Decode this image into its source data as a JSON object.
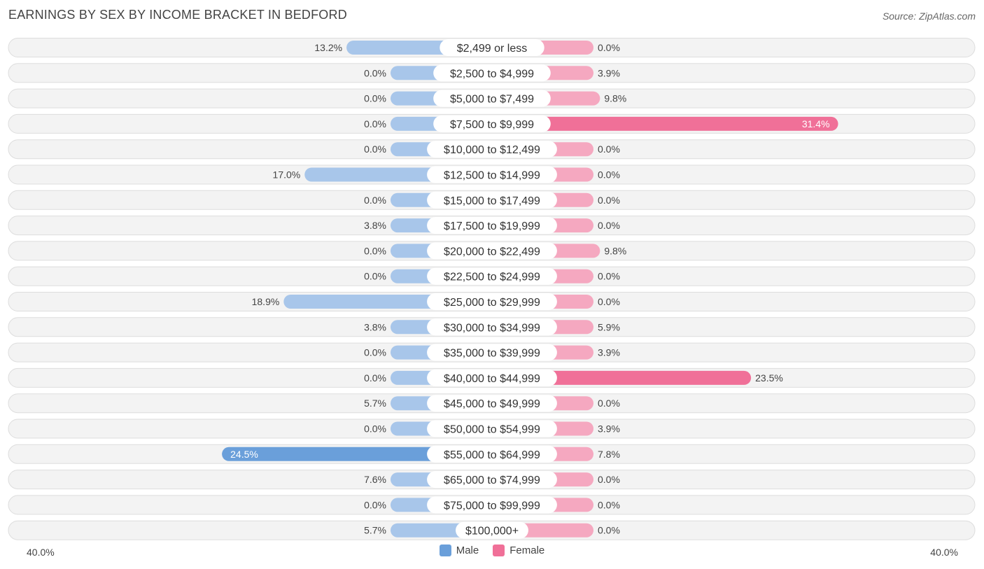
{
  "title": "EARNINGS BY SEX BY INCOME BRACKET IN BEDFORD",
  "source": "Source: ZipAtlas.com",
  "colors": {
    "male_light": "#a8c6ea",
    "male_dark": "#6a9fda",
    "female_light": "#f5a8c0",
    "female_dark": "#f07098",
    "row_bg": "#f3f3f3",
    "row_border": "#dddddd"
  },
  "legend": {
    "male_label": "Male",
    "female_label": "Female"
  },
  "axis": {
    "left_label": "40.0%",
    "right_label": "40.0%"
  },
  "chart_data": {
    "type": "bar",
    "orientation": "horizontal-diverging",
    "title": "EARNINGS BY SEX BY INCOME BRACKET IN BEDFORD",
    "xlim": [
      -40,
      40
    ],
    "categories": [
      "$2,499 or less",
      "$2,500 to $4,999",
      "$5,000 to $7,499",
      "$7,500 to $9,999",
      "$10,000 to $12,499",
      "$12,500 to $14,999",
      "$15,000 to $17,499",
      "$17,500 to $19,999",
      "$20,000 to $22,499",
      "$22,500 to $24,999",
      "$25,000 to $29,999",
      "$30,000 to $34,999",
      "$35,000 to $39,999",
      "$40,000 to $44,999",
      "$45,000 to $49,999",
      "$50,000 to $54,999",
      "$55,000 to $64,999",
      "$65,000 to $74,999",
      "$75,000 to $99,999",
      "$100,000+"
    ],
    "series": [
      {
        "name": "Male",
        "values": [
          13.2,
          0.0,
          0.0,
          0.0,
          0.0,
          17.0,
          0.0,
          3.8,
          0.0,
          0.0,
          18.9,
          3.8,
          0.0,
          0.0,
          5.7,
          0.0,
          24.5,
          7.6,
          0.0,
          5.7
        ],
        "labels": [
          "13.2%",
          "0.0%",
          "0.0%",
          "0.0%",
          "0.0%",
          "17.0%",
          "0.0%",
          "3.8%",
          "0.0%",
          "0.0%",
          "18.9%",
          "3.8%",
          "0.0%",
          "0.0%",
          "5.7%",
          "0.0%",
          "24.5%",
          "7.6%",
          "0.0%",
          "5.7%"
        ]
      },
      {
        "name": "Female",
        "values": [
          0.0,
          3.9,
          9.8,
          31.4,
          0.0,
          0.0,
          0.0,
          0.0,
          9.8,
          0.0,
          0.0,
          5.9,
          3.9,
          23.5,
          0.0,
          3.9,
          7.8,
          0.0,
          0.0,
          0.0
        ],
        "labels": [
          "0.0%",
          "3.9%",
          "9.8%",
          "31.4%",
          "0.0%",
          "0.0%",
          "0.0%",
          "0.0%",
          "9.8%",
          "0.0%",
          "0.0%",
          "5.9%",
          "3.9%",
          "23.5%",
          "0.0%",
          "3.9%",
          "7.8%",
          "0.0%",
          "0.0%",
          "0.0%"
        ]
      }
    ]
  }
}
